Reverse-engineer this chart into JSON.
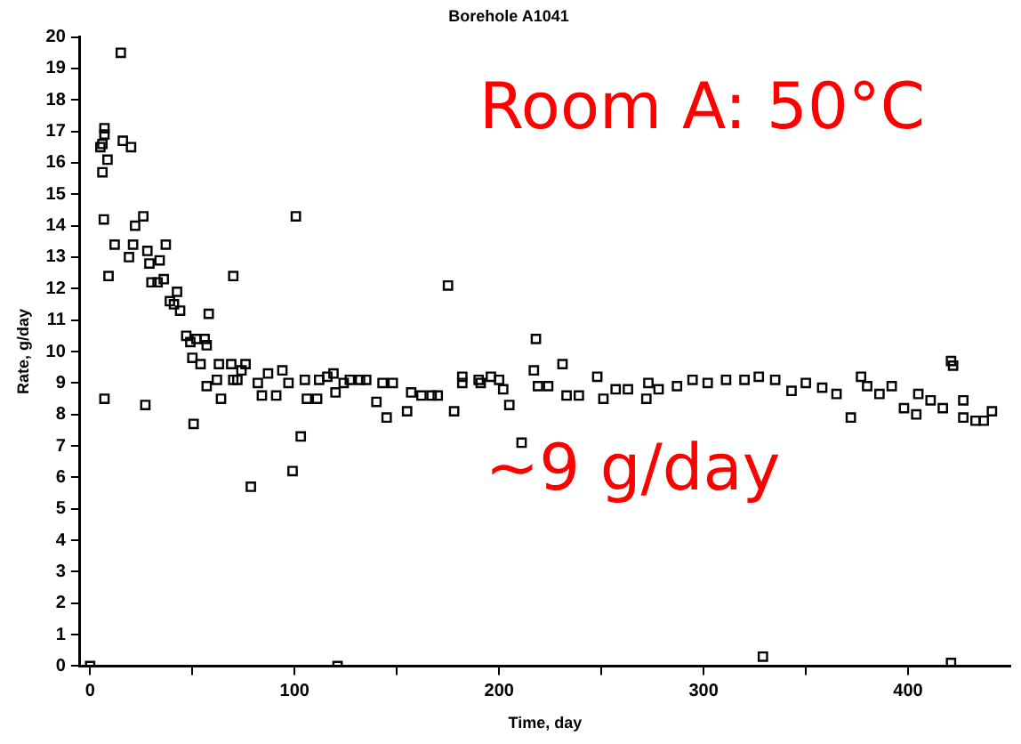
{
  "chart_data": {
    "type": "scatter",
    "title": "Borehole A1041",
    "xlabel": "Time, day",
    "ylabel": "Rate, g/day",
    "annotations": [
      "Room A: 50°C",
      "~9 g/day"
    ],
    "series": [
      {
        "color": "#000000",
        "x": [
          0,
          5,
          6,
          6,
          6.7,
          7,
          7,
          7,
          8.5,
          9,
          12,
          15,
          16,
          19,
          20,
          21,
          22,
          26,
          27,
          28,
          29,
          30,
          33,
          34,
          36,
          37,
          39,
          41,
          42.5,
          44,
          47,
          49,
          50,
          50.6,
          52,
          54,
          56,
          57,
          57,
          58,
          62,
          63,
          64,
          69,
          70,
          70,
          72,
          74,
          76,
          78.6,
          82,
          84,
          87,
          91,
          94,
          97,
          99,
          100.6,
          103,
          105,
          106,
          111,
          112,
          116,
          119,
          120,
          121,
          124,
          127,
          132,
          135,
          140,
          143,
          145,
          148,
          155,
          157,
          162,
          167,
          170,
          175,
          178,
          182,
          182,
          190,
          191,
          196,
          200,
          202,
          205,
          211,
          217,
          218,
          219,
          224,
          231,
          233,
          239,
          248,
          251,
          257,
          263,
          272,
          273,
          278,
          287,
          294.6,
          302,
          311,
          320,
          327,
          329,
          335,
          343,
          350,
          358,
          365,
          372,
          377,
          380,
          386,
          392,
          398,
          404,
          405,
          411,
          417,
          421,
          421,
          422,
          427,
          427,
          433,
          437,
          441
        ],
        "values": [
          0,
          16.5,
          16.6,
          15.7,
          14.2,
          17.1,
          16.9,
          8.5,
          16.1,
          12.4,
          13.4,
          19.5,
          16.7,
          13.0,
          16.5,
          13.4,
          14.0,
          14.3,
          8.3,
          13.2,
          12.8,
          12.2,
          12.2,
          12.9,
          12.3,
          13.4,
          11.6,
          11.5,
          11.9,
          11.3,
          10.5,
          10.3,
          9.8,
          7.7,
          10.4,
          9.6,
          10.4,
          10.2,
          8.9,
          11.2,
          9.1,
          9.6,
          8.5,
          9.6,
          12.4,
          9.1,
          9.1,
          9.4,
          9.6,
          5.7,
          9.0,
          8.6,
          9.3,
          8.6,
          9.4,
          9.0,
          6.2,
          14.3,
          7.3,
          9.1,
          8.5,
          8.5,
          9.1,
          9.2,
          9.3,
          8.7,
          0,
          9.0,
          9.1,
          9.1,
          9.1,
          8.4,
          9.0,
          7.9,
          9.0,
          8.1,
          8.7,
          8.6,
          8.6,
          8.6,
          12.1,
          8.1,
          9.2,
          9.0,
          9.1,
          9.0,
          9.2,
          9.1,
          8.8,
          8.3,
          7.1,
          9.4,
          10.4,
          8.9,
          8.9,
          9.6,
          8.6,
          8.6,
          9.2,
          8.5,
          8.8,
          8.8,
          8.5,
          9.0,
          8.8,
          8.9,
          9.1,
          9.0,
          9.1,
          9.1,
          9.2,
          0.3,
          9.1,
          8.75,
          9.0,
          8.85,
          8.65,
          7.9,
          9.2,
          8.9,
          8.65,
          8.9,
          8.2,
          8.0,
          8.65,
          8.45,
          8.2,
          9.7,
          0.1,
          9.55,
          8.45,
          7.9,
          7.8,
          7.8,
          8.1
        ]
      }
    ],
    "xlim": [
      -5,
      450
    ],
    "xticks": [
      0,
      {
        "value": 50,
        "label": null
      },
      100,
      {
        "value": 150,
        "label": null
      },
      200,
      {
        "value": 250,
        "label": null
      },
      300,
      {
        "value": 350,
        "label": null
      },
      400
    ],
    "ylim": [
      0,
      20
    ],
    "yticks": [
      0,
      1,
      2,
      3,
      4,
      5,
      6,
      7,
      8,
      9,
      10,
      11,
      12,
      13,
      14,
      15,
      16,
      17,
      18,
      19,
      20
    ],
    "grid": false,
    "legend": false,
    "marker": "square"
  }
}
